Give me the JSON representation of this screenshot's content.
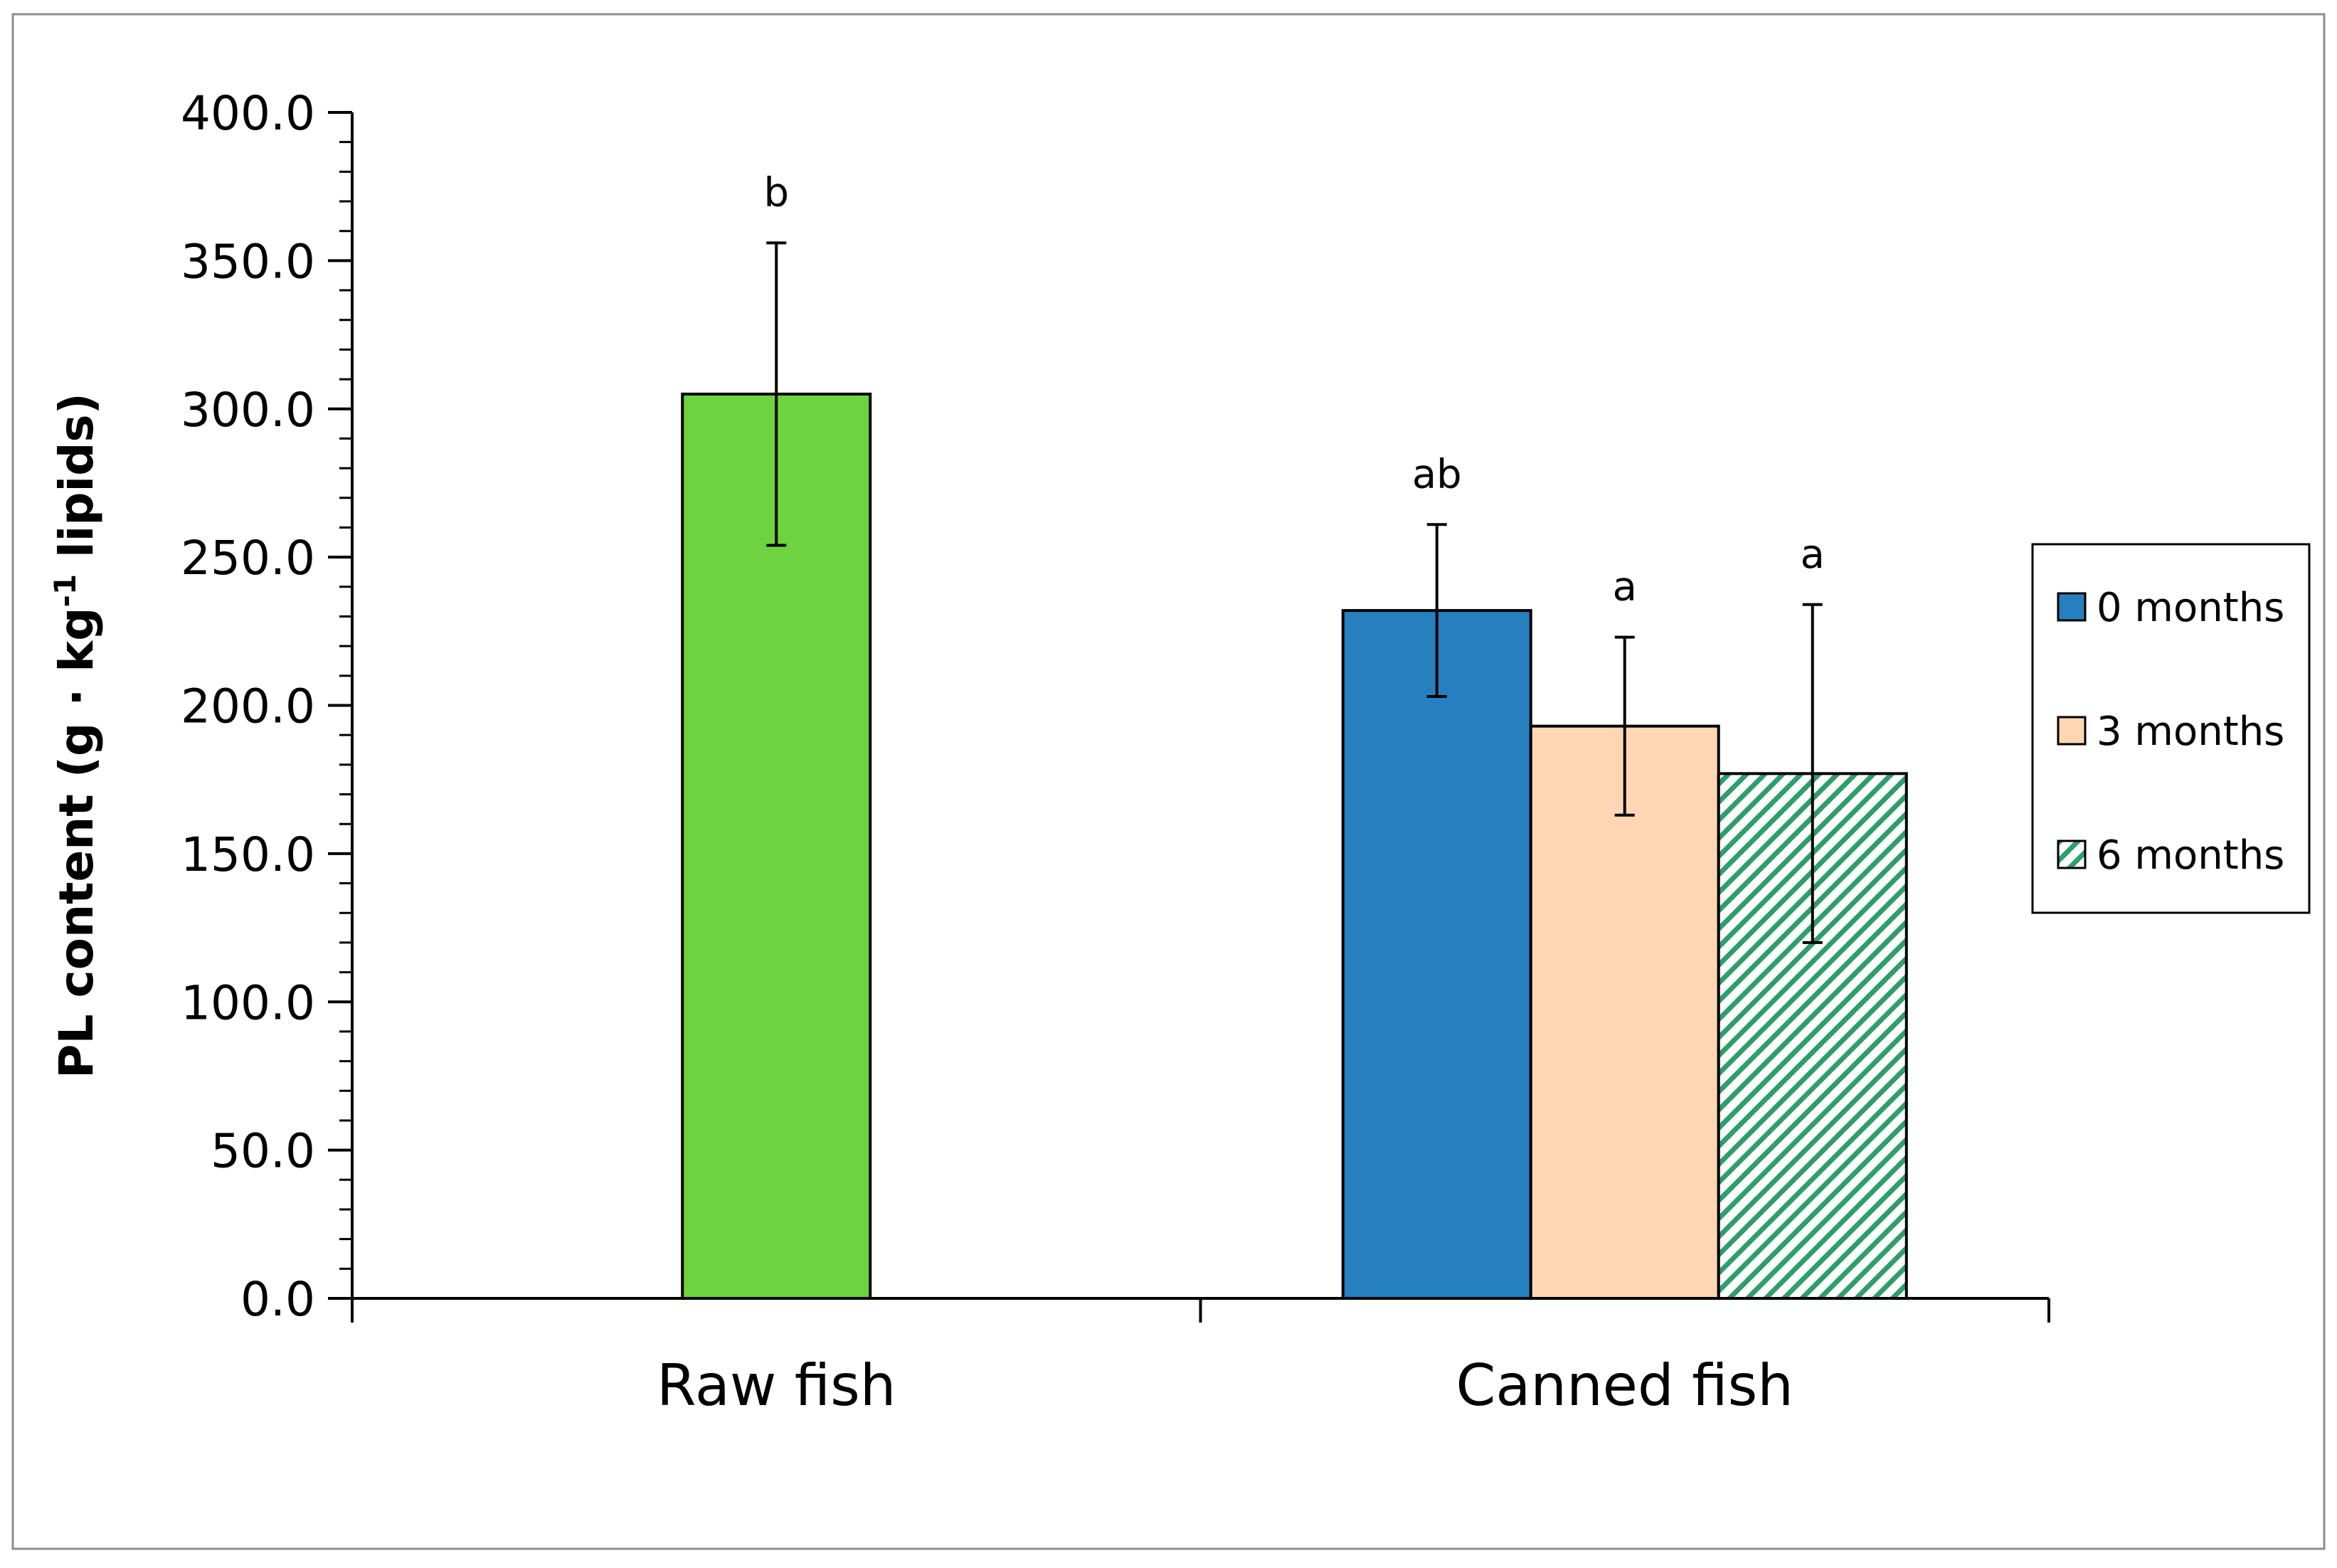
{
  "chart_data": {
    "type": "bar",
    "ylabel": {
      "prefix": "PL content  (g · kg",
      "superscript": "-1",
      "suffix": " lipids)"
    },
    "ylim": [
      0,
      400
    ],
    "yticks": [
      "0.0",
      "50.0",
      "100.0",
      "150.0",
      "200.0",
      "250.0",
      "300.0",
      "350.0",
      "400.0"
    ],
    "ytick_values": [
      0,
      50,
      100,
      150,
      200,
      250,
      300,
      350,
      400
    ],
    "grid": false,
    "legend_position": "right",
    "categories": [
      {
        "name": "Raw fish",
        "bars": [
          {
            "series": "Raw fish",
            "value": 305,
            "error": 51,
            "sig": "b",
            "color": "#6dd440",
            "pattern": "none"
          }
        ]
      },
      {
        "name": "Canned fish",
        "bars": [
          {
            "series": "0 months",
            "value": 232,
            "error": 29,
            "sig": "ab",
            "color": "#2680c0",
            "pattern": "none"
          },
          {
            "series": "3 months",
            "value": 193,
            "error": 30,
            "sig": "a",
            "color": "#fdd7b3",
            "pattern": "none"
          },
          {
            "series": "6 months",
            "value": 177,
            "error": 57,
            "sig": "a",
            "color": "#2e9e6a",
            "pattern": "diagonal"
          }
        ]
      }
    ],
    "legend": [
      {
        "name": "0 months",
        "color": "#2680c0",
        "pattern": "none"
      },
      {
        "name": "3 months",
        "color": "#fdd7b3",
        "pattern": "none"
      },
      {
        "name": "6 months",
        "color": "#2e9e6a",
        "pattern": "diagonal"
      }
    ]
  }
}
